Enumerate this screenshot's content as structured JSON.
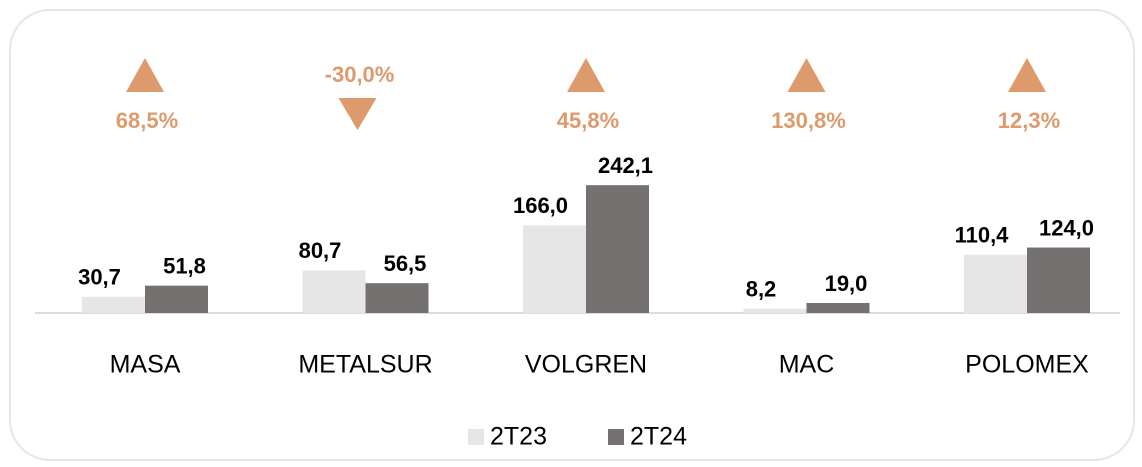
{
  "chart_data": {
    "type": "bar",
    "categories": [
      "MASA",
      "METALSUR",
      "VOLGREN",
      "MAC",
      "POLOMEX"
    ],
    "series": [
      {
        "name": "2T23",
        "color": "#e7e6e6",
        "values": [
          30.7,
          80.7,
          166.0,
          8.2,
          110.4
        ],
        "value_labels": [
          "30,7",
          "80,7",
          "166,0",
          "8,2",
          "110,4"
        ]
      },
      {
        "name": "2T24",
        "color": "#767171",
        "values": [
          51.8,
          56.5,
          242.1,
          19.0,
          124.0
        ],
        "value_labels": [
          "51,8",
          "56,5",
          "242,1",
          "19,0",
          "124,0"
        ]
      }
    ],
    "changes": {
      "color": "#dd9a6c",
      "values": [
        68.5,
        -30.0,
        45.8,
        130.8,
        12.3
      ],
      "value_labels": [
        "68,5%",
        "-30,0%",
        "45,8%",
        "130,8%",
        "12,3%"
      ]
    },
    "legend": "bottom"
  }
}
